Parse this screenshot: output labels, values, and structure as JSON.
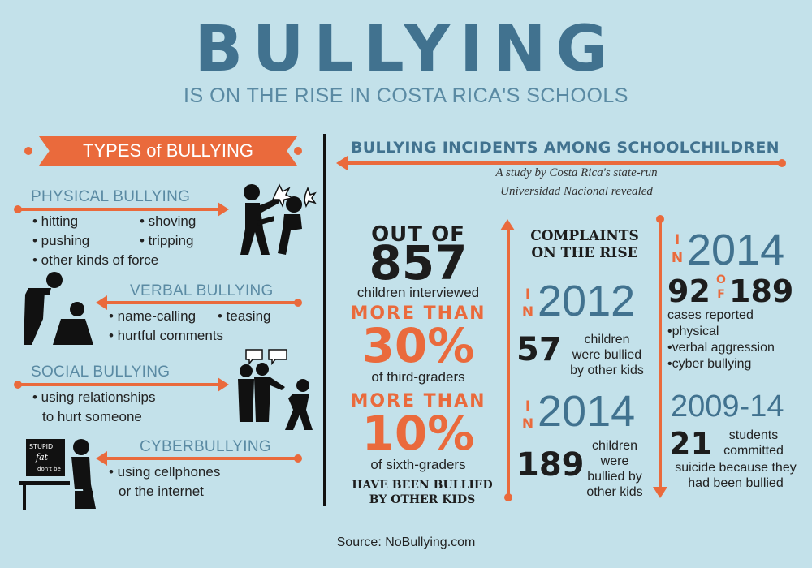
{
  "header": {
    "title": "BULLYING",
    "subtitle": "IS ON THE RISE IN COSTA RICA'S SCHOOLS"
  },
  "types": {
    "heading": "TYPES of BULLYING",
    "physical": {
      "label": "PHYSICAL BULLYING",
      "items": [
        "• hitting",
        "• shoving",
        "• pushing",
        "• tripping",
        "• other kinds of force"
      ]
    },
    "verbal": {
      "label": "VERBAL BULLYING",
      "items": [
        "• name-calling",
        "• teasing",
        "• hurtful comments"
      ]
    },
    "social": {
      "label": "SOCIAL BULLYING",
      "items": [
        "• using relationships",
        "to hurt someone"
      ]
    },
    "cyber": {
      "label": "CYBERBULLYING",
      "items": [
        "• using cellphones",
        "or the internet"
      ],
      "screen_words": [
        "STUPID",
        "fat",
        "don't be"
      ]
    }
  },
  "incidents": {
    "heading": "BULLYING INCIDENTS AMONG SCHOOLCHILDREN",
    "study_line1": "A study by Costa Rica's state-run",
    "study_line2": "Universidad Nacional revealed",
    "out_of": "OUT OF",
    "total": "857",
    "interviewed": "children interviewed",
    "more_than_1": "MORE THAN",
    "pct1": "30%",
    "pct1_label": "of third-graders",
    "more_than_2": "MORE THAN",
    "pct2": "10%",
    "pct2_label": "of sixth-graders",
    "bullied_line1": "HAVE BEEN BULLIED",
    "bullied_line2": "BY OTHER KIDS",
    "complaints_line1": "COMPLAINTS",
    "complaints_line2": "ON THE RISE",
    "in_word": "IN",
    "of_word": "OF",
    "y2012": {
      "year": "2012",
      "number": "57",
      "text": [
        "children",
        "were bullied",
        "by other kids"
      ]
    },
    "y2014a": {
      "year": "2014",
      "number": "189",
      "text": [
        "children",
        "were",
        "bullied by",
        "other kids"
      ]
    },
    "y2014b": {
      "year": "2014",
      "num1": "92",
      "num2": "189",
      "label": "cases reported",
      "items": [
        "•physical",
        "•verbal aggression",
        "•cyber bullying"
      ]
    },
    "range": {
      "years": "2009-14",
      "number": "21",
      "text1": "students",
      "text2": "committed",
      "text3": "suicide because they",
      "text4": "had been bullied"
    }
  },
  "source": "Source: NoBullying.com",
  "colors": {
    "background": "#c3e1ea",
    "accent": "#ea6a3c",
    "blue": "#41728f",
    "dark": "#1d1d1d"
  }
}
